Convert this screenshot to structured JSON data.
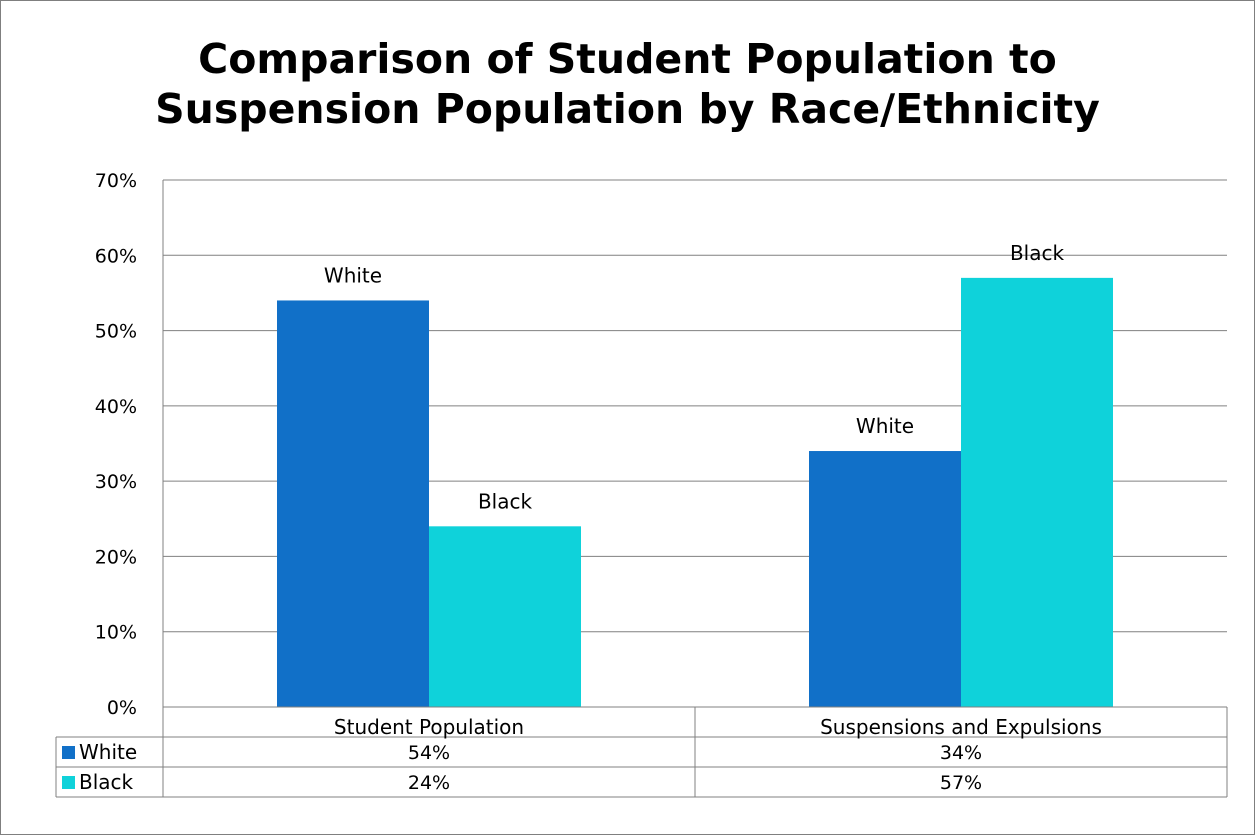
{
  "chart_data": {
    "type": "bar",
    "title_lines": [
      "Comparison of Student Population to",
      "Suspension Population by Race/Ethnicity"
    ],
    "categories": [
      "Student Population",
      "Suspensions and Expulsions"
    ],
    "series": [
      {
        "name": "White",
        "values": [
          54,
          34
        ],
        "value_labels": [
          "54%",
          "34%"
        ],
        "color": "#1170c8"
      },
      {
        "name": "Black",
        "values": [
          24,
          57
        ],
        "value_labels": [
          "24%",
          "57%"
        ],
        "color": "#0fd2da"
      }
    ],
    "bar_labels": [
      "White",
      "Black"
    ],
    "ylim": [
      0,
      70
    ],
    "y_ticks": [
      0,
      10,
      20,
      30,
      40,
      50,
      60,
      70
    ],
    "y_tick_labels": [
      "0%",
      "10%",
      "20%",
      "30%",
      "40%",
      "50%",
      "60%",
      "70%"
    ],
    "grid": true,
    "data_table": true,
    "colors": {
      "grid": "#808080",
      "frame": "#7f7f7f"
    }
  }
}
